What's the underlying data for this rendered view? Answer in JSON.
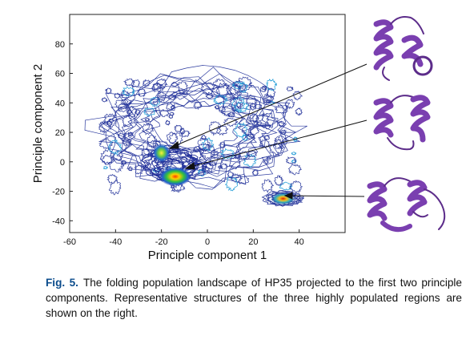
{
  "chart_data": {
    "type": "contour",
    "xlabel": "Principle component 1",
    "ylabel": "Principle component 2",
    "xlim": [
      -60,
      60
    ],
    "ylim": [
      -48,
      100
    ],
    "xticks": [
      "-60",
      "-40",
      "-20",
      "0",
      "20",
      "40"
    ],
    "yticks": [
      "80",
      "60",
      "40",
      "20",
      "0",
      "-20",
      "-40"
    ],
    "xtick_values": [
      -60,
      -40,
      -20,
      0,
      20,
      40
    ],
    "ytick_values": [
      80,
      60,
      40,
      20,
      0,
      -20,
      -40
    ],
    "density_peaks": [
      {
        "x": -20,
        "y": 6,
        "level": "high"
      },
      {
        "x": -14,
        "y": -10,
        "level": "highest"
      },
      {
        "x": 33,
        "y": -25,
        "level": "high"
      }
    ],
    "grid": false
  },
  "caption": {
    "label": "Fig. 5.",
    "text": "The folding population landscape of HP35 projected to the first two principle components. Representative structures of the three highly populated regions are shown on the right."
  },
  "colors": {
    "contour_low": "#2b3a9e",
    "contour_high": "#d92a10",
    "protein": "#7a3fb0",
    "caption_label": "#0b4c8c"
  }
}
